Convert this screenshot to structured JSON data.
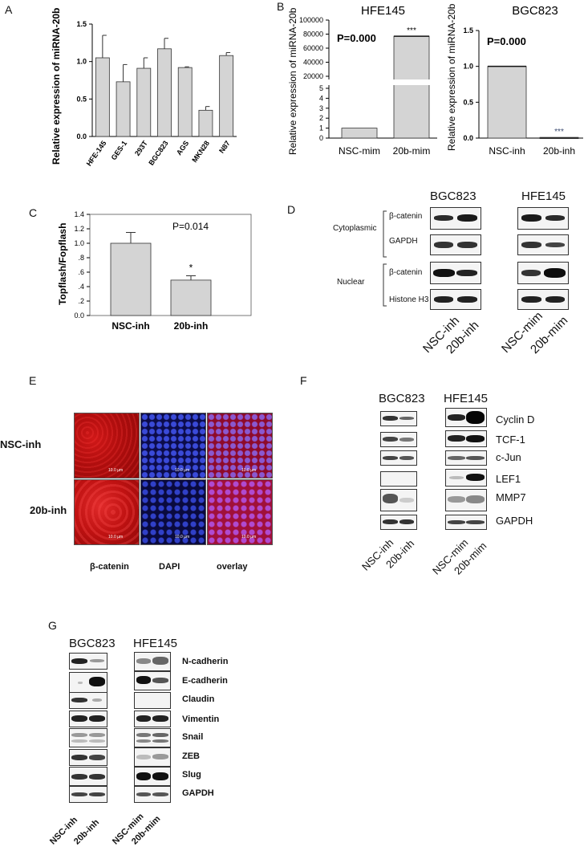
{
  "panels": {
    "a": "A",
    "b": "B",
    "c": "C",
    "d": "D",
    "e": "E",
    "f": "F",
    "g": "G"
  },
  "chart_data": [
    {
      "type": "bar",
      "categories": [
        "HFE-145",
        "GES-1",
        "293T",
        "BGC823",
        "AGS",
        "MKN28",
        "N87"
      ],
      "values": [
        1.05,
        0.73,
        0.91,
        1.17,
        0.92,
        0.35,
        1.08
      ],
      "errors": [
        0.3,
        0.23,
        0.14,
        0.14,
        0.01,
        0.05,
        0.04
      ],
      "ylabel": "Relative expression of miRNA-20b",
      "yticks": [
        "0.0",
        "0.5",
        "1.0",
        "1.5"
      ],
      "ylim": [
        0,
        1.5
      ]
    },
    {
      "type": "bar",
      "title": "HFE145",
      "categories": [
        "NSC-mim",
        "20b-mim"
      ],
      "values": [
        1,
        77000
      ],
      "ylabel": "Relative expression of miRNA-20b",
      "annotation": "P=0.000",
      "significance": "***",
      "yticks_lower": [
        "0",
        "1",
        "2",
        "3",
        "4",
        "5"
      ],
      "yticks_upper": [
        "20000",
        "40000",
        "60000",
        "80000",
        "100000"
      ]
    },
    {
      "type": "bar",
      "title": "BGC823",
      "categories": [
        "NSC-inh",
        "20b-inh"
      ],
      "values": [
        1.0,
        0.01
      ],
      "ylabel": "Relative expression of miRNA-20b",
      "annotation": "P=0.000",
      "significance": "***",
      "yticks": [
        "0.0",
        "0.5",
        "1.0",
        "1.5"
      ],
      "ylim": [
        0,
        1.5
      ]
    },
    {
      "type": "bar",
      "categories": [
        "NSC-inh",
        "20b-inh"
      ],
      "values": [
        1.0,
        0.49
      ],
      "errors": [
        0.15,
        0.06
      ],
      "ylabel": "Topflash/Fopflash",
      "annotation": "P=0.014",
      "significance": "*",
      "yticks": [
        "0.0",
        ".2",
        ".4",
        ".6",
        ".8",
        "1.0",
        "1.2",
        "1.4"
      ],
      "ylim": [
        0,
        1.4
      ]
    }
  ],
  "panel_d": {
    "col_titles": [
      "BGC823",
      "HFE145"
    ],
    "groups": [
      "Cytoplasmic",
      "Nuclear"
    ],
    "rows": [
      "β-catenin",
      "GAPDH",
      "β-catenin",
      "Histone H3"
    ],
    "lanes_left": [
      "NSC-inh",
      "20b-inh"
    ],
    "lanes_right": [
      "NSC-mim",
      "20b-mim"
    ]
  },
  "panel_e": {
    "rows": [
      "NSC-inh",
      "20b-inh"
    ],
    "cols": [
      "β-catenin",
      "DAPI",
      "overlay"
    ],
    "scale": "10.0 µm"
  },
  "panel_f": {
    "col_titles": [
      "BGC823",
      "HFE145"
    ],
    "rows": [
      "Cyclin D",
      "TCF-1",
      "c-Jun",
      "LEF1",
      "MMP7",
      "GAPDH"
    ],
    "lanes_left": [
      "NSC-inh",
      "20b-inh"
    ],
    "lanes_right": [
      "NSC-mim",
      "20b-mim"
    ]
  },
  "panel_g": {
    "col_titles": [
      "BGC823",
      "HFE145"
    ],
    "rows": [
      "N-cadherin",
      "E-cadherin",
      "Claudin",
      "Vimentin",
      "Snail",
      "ZEB",
      "Slug",
      "GAPDH"
    ],
    "lanes_left": [
      "NSC-inh",
      "20b-inh"
    ],
    "lanes_right": [
      "NSC-mim",
      "20b-mim"
    ]
  },
  "colors": {
    "bar": "#d4d4d4",
    "red_channel": "#c01010",
    "blue_channel": "#1a1a9a",
    "band": "#1c1c1c"
  }
}
